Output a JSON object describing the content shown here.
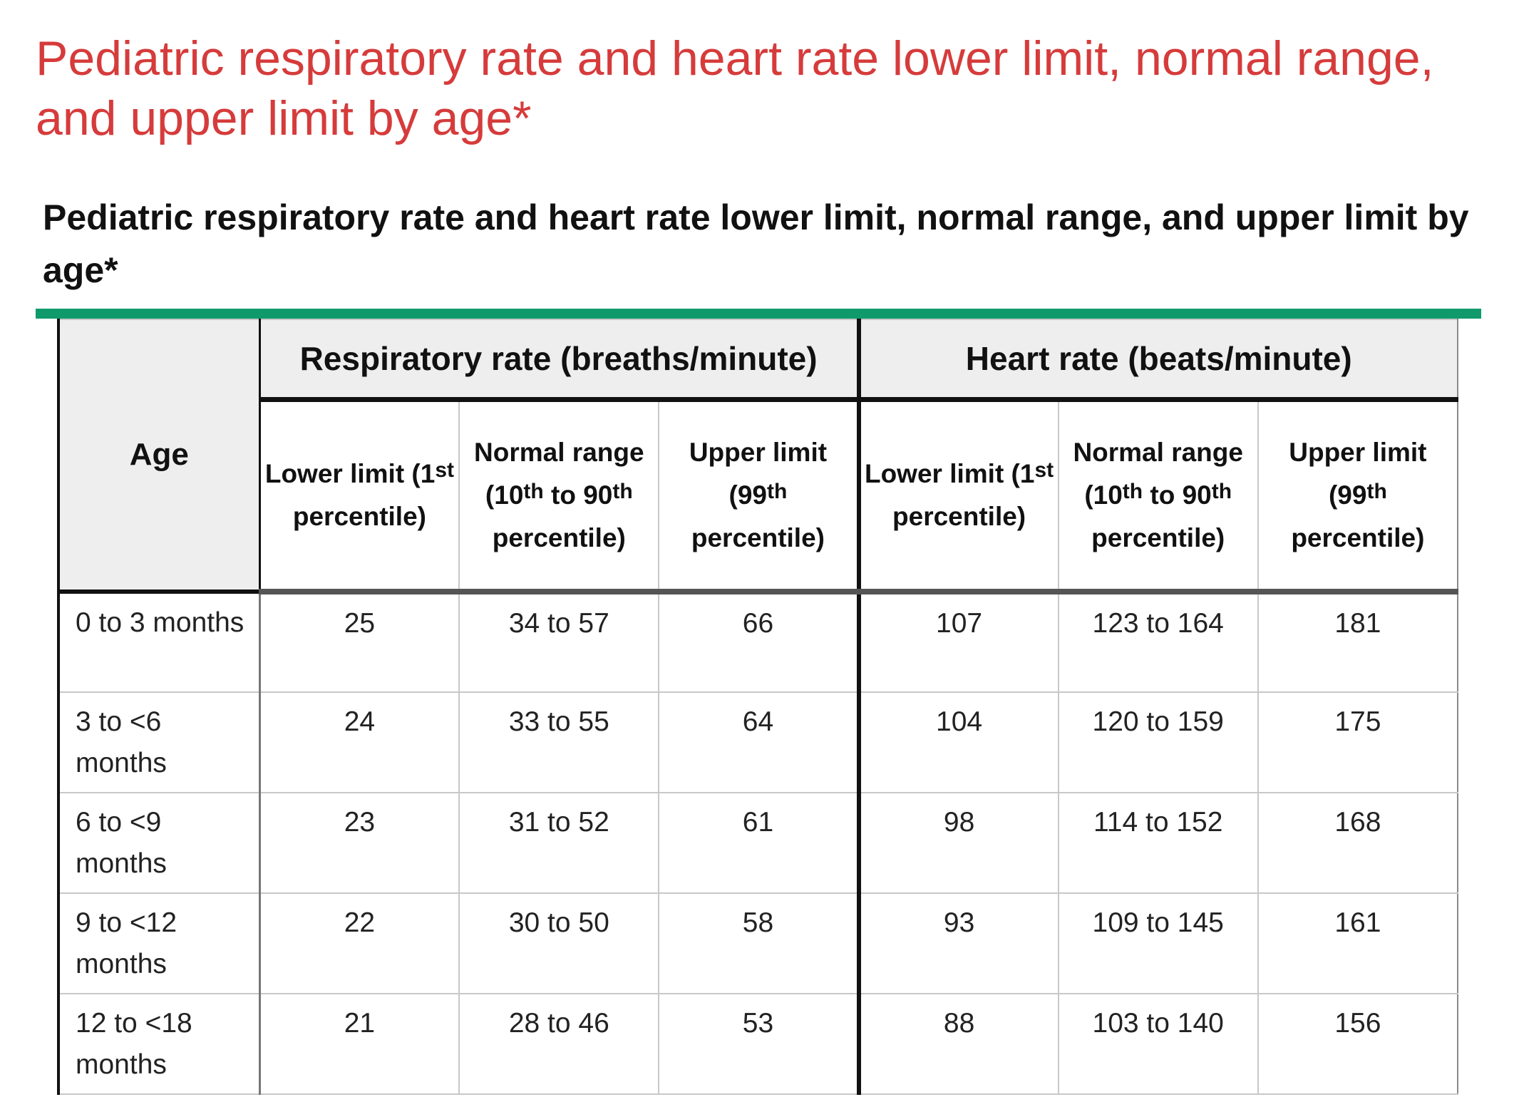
{
  "page": {
    "title": "Pediatric respiratory rate and heart rate lower limit, normal range, and upper limit by age*"
  },
  "table": {
    "caption": "Pediatric respiratory rate and heart rate lower limit, normal range, and upper limit by age*",
    "age_header": "Age",
    "groups": {
      "respiratory": "Respiratory rate (breaths/minute)",
      "heart": "Heart rate (beats/minute)"
    },
    "subheaders": {
      "lower": {
        "text": "Lower limit (1",
        "sup": "st",
        "tail": "percentile)"
      },
      "normal": {
        "label": "Normal range",
        "open": "(10",
        "sup1": "th",
        "mid": "to 90",
        "sup2": "th",
        "tail": "percentile)"
      },
      "upper": {
        "text": "Upper limit (99",
        "sup": "th",
        "tail": "percentile)"
      }
    },
    "rows": [
      {
        "age": "0 to 3 months",
        "rr_lower": "25",
        "rr_normal": "34 to 57",
        "rr_upper": "66",
        "hr_lower": "107",
        "hr_normal": "123 to 164",
        "hr_upper": "181"
      },
      {
        "age": "3 to <6 months",
        "rr_lower": "24",
        "rr_normal": "33 to 55",
        "rr_upper": "64",
        "hr_lower": "104",
        "hr_normal": "120 to 159",
        "hr_upper": "175"
      },
      {
        "age": "6 to <9 months",
        "rr_lower": "23",
        "rr_normal": "31 to 52",
        "rr_upper": "61",
        "hr_lower": "98",
        "hr_normal": "114 to 152",
        "hr_upper": "168"
      },
      {
        "age": "9 to <12 months",
        "rr_lower": "22",
        "rr_normal": "30 to 50",
        "rr_upper": "58",
        "hr_lower": "93",
        "hr_normal": "109 to 145",
        "hr_upper": "161"
      },
      {
        "age": "12 to <18 months",
        "rr_lower": "21",
        "rr_normal": "28 to 46",
        "rr_upper": "53",
        "hr_lower": "88",
        "hr_normal": "103 to 140",
        "hr_upper": "156"
      }
    ]
  },
  "colors": {
    "title": "#d63b3b",
    "accent_rule": "#109a6b",
    "header_bg": "#eeeeee"
  }
}
